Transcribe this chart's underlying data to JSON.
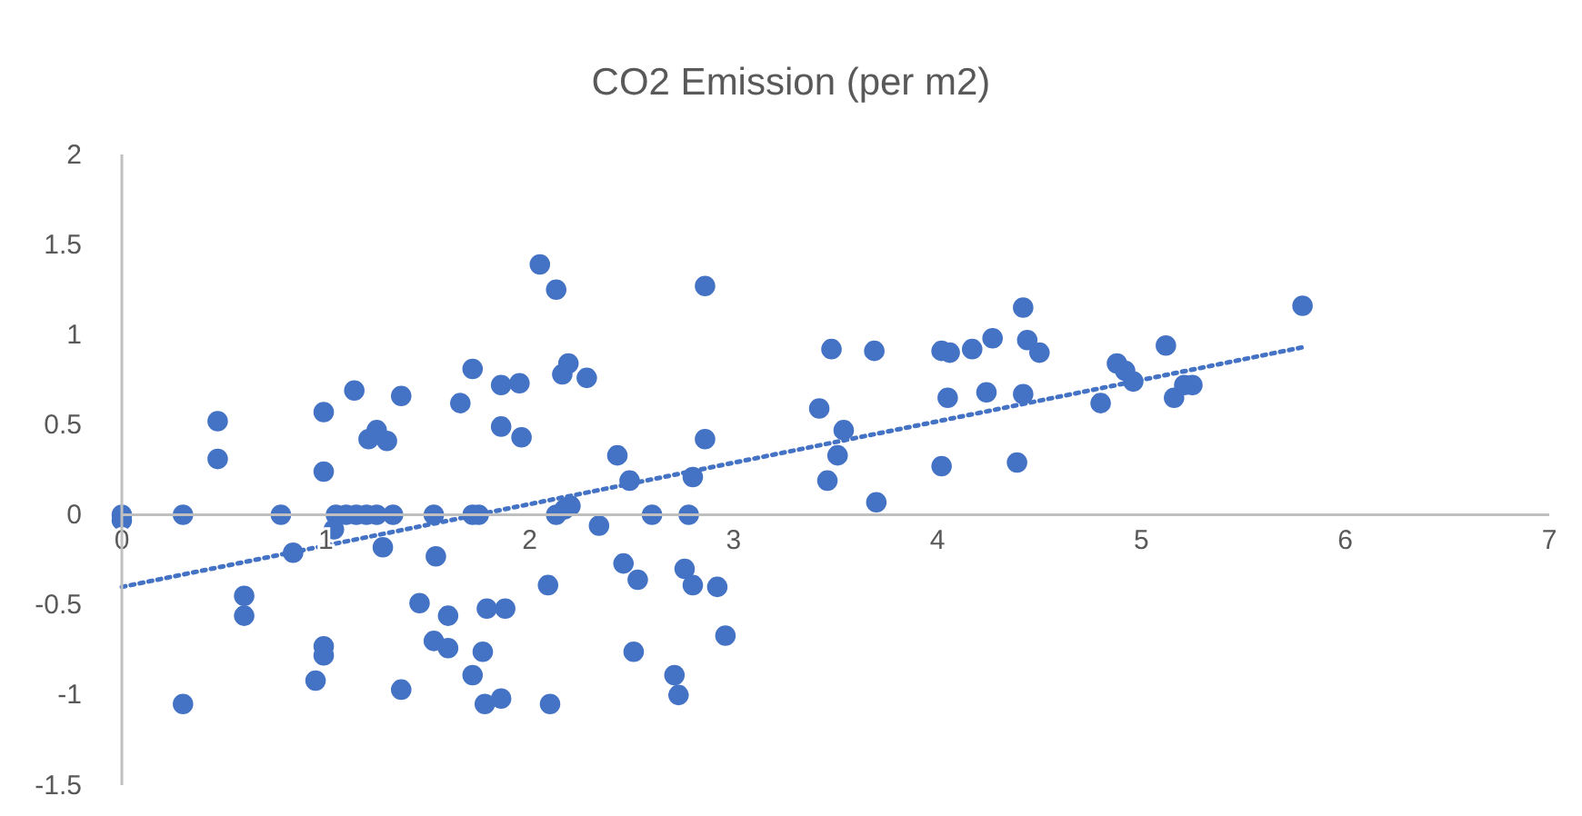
{
  "chart_data": {
    "type": "scatter",
    "title": "CO2 Emission (per m2)",
    "xlim": [
      0,
      7
    ],
    "xticks": [
      0,
      1,
      2,
      3,
      4,
      5,
      6,
      7
    ],
    "ylim": [
      -1.5,
      2
    ],
    "yticks": [
      -1.5,
      -1,
      -0.5,
      0,
      0.5,
      1,
      1.5,
      2
    ],
    "grid": false,
    "marker": "circle",
    "series": [
      {
        "color": "#4472c4",
        "x": [
          0,
          0,
          0.3,
          0.3,
          0.47,
          0.47,
          0.6,
          0.6,
          0.78,
          0.84,
          0.99,
          0.99,
          0.99,
          0.99,
          0.95,
          1.05,
          1.1,
          1.15,
          1.2,
          1.25,
          1.04,
          1.14,
          1.21,
          1.25,
          1.3,
          1.37,
          1.33,
          1.28,
          1.37,
          1.53,
          1.54,
          1.46,
          1.53,
          1.6,
          1.6,
          1.66,
          1.72,
          1.72,
          1.75,
          1.72,
          1.77,
          1.78,
          1.79,
          1.88,
          1.86,
          1.86,
          1.95,
          1.86,
          1.96,
          2.05,
          2.13,
          2.09,
          2.1,
          2.13,
          2.17,
          2.2,
          2.16,
          2.19,
          2.28,
          2.34,
          2.43,
          2.49,
          2.46,
          2.53,
          2.51,
          2.6,
          2.71,
          2.73,
          2.76,
          2.8,
          2.92,
          2.96,
          2.78,
          2.8,
          2.86,
          2.86,
          3.42,
          3.48,
          3.46,
          3.51,
          3.54,
          3.69,
          3.7,
          4.02,
          4.02,
          4.06,
          4.05,
          4.17,
          4.27,
          4.24,
          4.39,
          4.42,
          4.42,
          4.44,
          4.5,
          4.8,
          4.88,
          4.92,
          4.96,
          5.12,
          5.16,
          5.21,
          5.25,
          5.79
        ],
        "values": [
          0,
          -0.03,
          0,
          -1.05,
          0.52,
          0.31,
          -0.45,
          -0.56,
          0,
          -0.21,
          0.57,
          0.24,
          -0.73,
          -0.78,
          -0.92,
          0,
          0,
          0,
          0,
          0,
          -0.08,
          0.69,
          0.42,
          0.47,
          0.41,
          0.66,
          0,
          -0.18,
          -0.97,
          0,
          -0.23,
          -0.49,
          -0.7,
          -0.74,
          -0.56,
          0.62,
          0.81,
          0,
          0,
          -0.89,
          -0.76,
          -1.05,
          -0.52,
          -0.52,
          -1.02,
          0.72,
          0.73,
          0.49,
          0.43,
          1.39,
          1.25,
          -0.39,
          -1.05,
          0,
          0.03,
          0.05,
          0.78,
          0.84,
          0.76,
          -0.06,
          0.33,
          0.19,
          -0.27,
          -0.36,
          -0.76,
          0,
          -0.89,
          -1.0,
          -0.3,
          -0.39,
          -0.4,
          -0.67,
          0,
          0.21,
          0.42,
          1.27,
          0.59,
          0.92,
          0.19,
          0.33,
          0.47,
          0.91,
          0.07,
          0.27,
          0.91,
          0.9,
          0.65,
          0.92,
          0.98,
          0.68,
          0.29,
          0.67,
          1.15,
          0.97,
          0.9,
          0.62,
          0.84,
          0.8,
          0.74,
          0.94,
          0.65,
          0.72,
          0.72,
          1.16
        ]
      },
      {
        "type": "line",
        "color": "#4472c4",
        "line_style": "dotted",
        "marker": "none",
        "x": [
          0,
          5.79
        ],
        "values": [
          -0.4,
          0.93
        ]
      }
    ]
  }
}
